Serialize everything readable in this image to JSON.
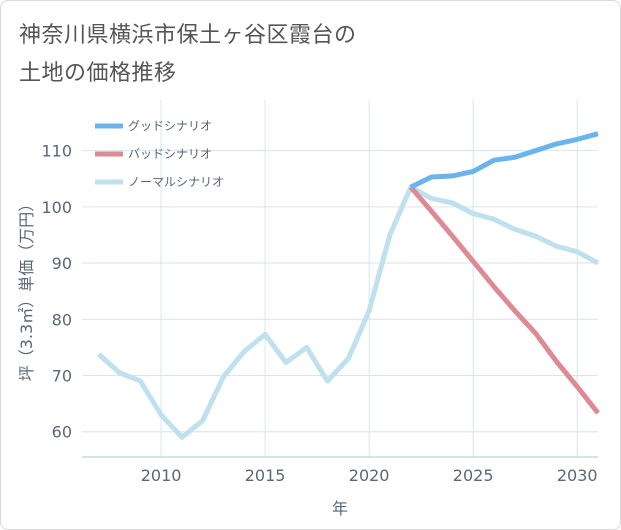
{
  "title": {
    "line1": "神奈川県横浜市保土ヶ谷区霞台の",
    "line2": "土地の価格推移"
  },
  "chart_data": {
    "type": "line",
    "xlabel": "年",
    "ylabel": "坪（3.3㎡）単価（万円）",
    "xlim": [
      2006.2,
      2031.0
    ],
    "ylim": [
      55.5,
      119.0
    ],
    "xticks": [
      2010,
      2015,
      2020,
      2025,
      2030
    ],
    "yticks": [
      60,
      70,
      80,
      90,
      100,
      110
    ],
    "grid": true,
    "legend_position": "top-left",
    "series": [
      {
        "name": "グッドシナリオ",
        "color": "#6ab4ec",
        "width": 5,
        "x": [
          2022,
          2023,
          2024,
          2025,
          2026,
          2027,
          2028,
          2029,
          2030,
          2031
        ],
        "values": [
          103.5,
          105.3,
          105.5,
          106.3,
          108.3,
          108.8,
          110.0,
          111.2,
          112.0,
          113.0
        ]
      },
      {
        "name": "バッドシナリオ",
        "color": "#de8a94",
        "width": 5,
        "x": [
          2022,
          2023,
          2024,
          2025,
          2026,
          2027,
          2028,
          2029,
          2030,
          2031
        ],
        "values": [
          103.5,
          99.2,
          94.8,
          90.3,
          85.8,
          81.5,
          77.5,
          72.5,
          68.0,
          63.3
        ]
      },
      {
        "name": "ノーマルシナリオ",
        "color": "#bfe0ed",
        "width": 5,
        "x": [
          2007,
          2008,
          2009,
          2010,
          2011,
          2012,
          2013,
          2014,
          2015,
          2016,
          2017,
          2018,
          2019,
          2020,
          2021,
          2022,
          2023,
          2024,
          2025,
          2026,
          2027,
          2028,
          2029,
          2030,
          2031
        ],
        "values": [
          73.8,
          70.5,
          69.0,
          63.0,
          59.0,
          62.0,
          69.8,
          74.3,
          77.3,
          72.3,
          75.0,
          69.0,
          73.0,
          81.5,
          95.0,
          103.5,
          101.5,
          100.7,
          98.8,
          97.8,
          96.0,
          94.8,
          93.0,
          92.0,
          90.0
        ]
      }
    ]
  }
}
